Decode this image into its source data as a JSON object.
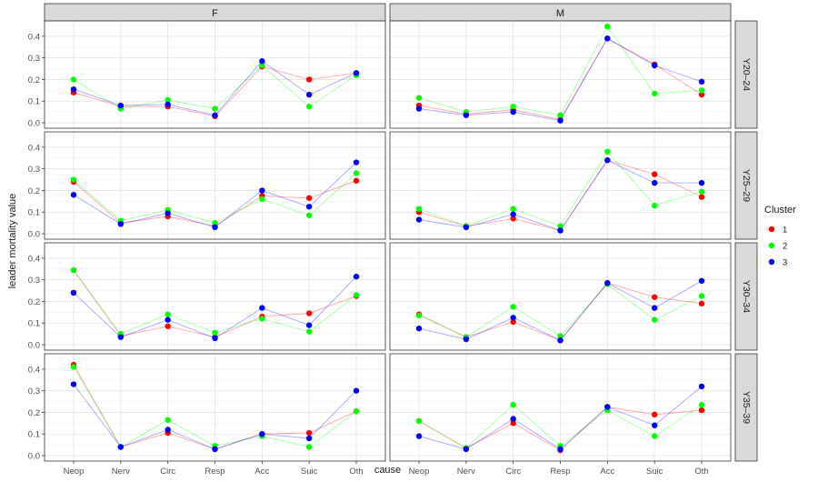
{
  "chart_data": {
    "type": "line",
    "xlabel": "cause",
    "ylabel": "leader mortality value",
    "categories": [
      "Neop",
      "Nerv",
      "Circ",
      "Resp",
      "Acc",
      "Suic",
      "Oth"
    ],
    "ylim": [
      0,
      0.45
    ],
    "yticks": [
      "0.0",
      "0.1",
      "0.2",
      "0.3",
      "0.4"
    ],
    "column_strips": [
      "F",
      "M"
    ],
    "row_strips": [
      "Y20–24",
      "Y25–29",
      "Y30–34",
      "Y35–39"
    ],
    "legend": {
      "title": "Cluster",
      "position": "right",
      "items": [
        {
          "label": "1",
          "color": "#ff0000"
        },
        {
          "label": "2",
          "color": "#00ff00"
        },
        {
          "label": "3",
          "color": "#0000ff"
        }
      ]
    },
    "grid": true,
    "panels": [
      {
        "col": "F",
        "row": "Y20–24",
        "series": [
          {
            "cluster": "1",
            "values": [
              0.14,
              0.075,
              0.075,
              0.03,
              0.26,
              0.2,
              0.23
            ]
          },
          {
            "cluster": "2",
            "values": [
              0.2,
              0.065,
              0.105,
              0.065,
              0.265,
              0.075,
              0.22
            ]
          },
          {
            "cluster": "3",
            "values": [
              0.155,
              0.08,
              0.085,
              0.035,
              0.285,
              0.13,
              0.23
            ]
          }
        ]
      },
      {
        "col": "M",
        "row": "Y20–24",
        "series": [
          {
            "cluster": "1",
            "values": [
              0.08,
              0.04,
              0.06,
              0.015,
              0.39,
              0.27,
              0.13
            ]
          },
          {
            "cluster": "2",
            "values": [
              0.115,
              0.05,
              0.075,
              0.035,
              0.445,
              0.135,
              0.15
            ]
          },
          {
            "cluster": "3",
            "values": [
              0.065,
              0.035,
              0.05,
              0.01,
              0.39,
              0.265,
              0.19
            ]
          }
        ]
      },
      {
        "col": "F",
        "row": "Y25–29",
        "series": [
          {
            "cluster": "1",
            "values": [
              0.24,
              0.05,
              0.08,
              0.035,
              0.175,
              0.165,
              0.245
            ]
          },
          {
            "cluster": "2",
            "values": [
              0.25,
              0.06,
              0.11,
              0.05,
              0.16,
              0.085,
              0.28
            ]
          },
          {
            "cluster": "3",
            "values": [
              0.18,
              0.045,
              0.095,
              0.03,
              0.2,
              0.125,
              0.33
            ]
          }
        ]
      },
      {
        "col": "M",
        "row": "Y25–29",
        "series": [
          {
            "cluster": "1",
            "values": [
              0.1,
              0.035,
              0.07,
              0.015,
              0.34,
              0.275,
              0.17
            ]
          },
          {
            "cluster": "2",
            "values": [
              0.115,
              0.035,
              0.115,
              0.035,
              0.38,
              0.13,
              0.195
            ]
          },
          {
            "cluster": "3",
            "values": [
              0.065,
              0.03,
              0.09,
              0.015,
              0.34,
              0.235,
              0.235
            ]
          }
        ]
      },
      {
        "col": "F",
        "row": "Y30–34",
        "series": [
          {
            "cluster": "1",
            "values": [
              0.345,
              0.04,
              0.085,
              0.035,
              0.13,
              0.145,
              0.225
            ]
          },
          {
            "cluster": "2",
            "values": [
              0.345,
              0.05,
              0.14,
              0.055,
              0.12,
              0.06,
              0.23
            ]
          },
          {
            "cluster": "3",
            "values": [
              0.24,
              0.035,
              0.115,
              0.03,
              0.17,
              0.09,
              0.315
            ]
          }
        ]
      },
      {
        "col": "M",
        "row": "Y30–34",
        "series": [
          {
            "cluster": "1",
            "values": [
              0.14,
              0.035,
              0.105,
              0.02,
              0.285,
              0.22,
              0.19
            ]
          },
          {
            "cluster": "2",
            "values": [
              0.135,
              0.035,
              0.175,
              0.04,
              0.28,
              0.115,
              0.225
            ]
          },
          {
            "cluster": "3",
            "values": [
              0.075,
              0.025,
              0.125,
              0.02,
              0.285,
              0.17,
              0.295
            ]
          }
        ]
      },
      {
        "col": "F",
        "row": "Y35–39",
        "series": [
          {
            "cluster": "1",
            "values": [
              0.42,
              0.04,
              0.105,
              0.03,
              0.1,
              0.105,
              0.205
            ]
          },
          {
            "cluster": "2",
            "values": [
              0.41,
              0.04,
              0.165,
              0.045,
              0.09,
              0.04,
              0.205
            ]
          },
          {
            "cluster": "3",
            "values": [
              0.33,
              0.04,
              0.12,
              0.03,
              0.1,
              0.08,
              0.3
            ]
          }
        ]
      },
      {
        "col": "M",
        "row": "Y35–39",
        "series": [
          {
            "cluster": "1",
            "values": [
              0.16,
              0.035,
              0.15,
              0.025,
              0.225,
              0.19,
              0.21
            ]
          },
          {
            "cluster": "2",
            "values": [
              0.16,
              0.035,
              0.235,
              0.045,
              0.21,
              0.09,
              0.235
            ]
          },
          {
            "cluster": "3",
            "values": [
              0.09,
              0.03,
              0.17,
              0.03,
              0.225,
              0.14,
              0.32
            ]
          }
        ]
      }
    ]
  }
}
